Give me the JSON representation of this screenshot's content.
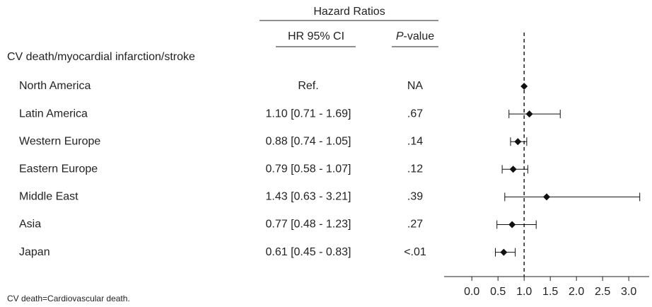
{
  "chart_data": {
    "type": "forest",
    "header": "Hazard Ratios",
    "ci_header": "HR 95% CI",
    "p_header_italic": "P",
    "p_header_rest": "-value",
    "section_label": "CV death/myocardial infarction/stroke",
    "categories": [
      "North America",
      "Latin America",
      "Western Europe",
      "Eastern Europe",
      "Middle East",
      "Asia",
      "Japan"
    ],
    "values": [
      1,
      1.1,
      0.88,
      0.79,
      1.43,
      0.77,
      0.61
    ],
    "lower": [
      null,
      0.71,
      0.74,
      0.58,
      0.63,
      0.48,
      0.45
    ],
    "upper": [
      null,
      1.69,
      1.05,
      1.07,
      3.21,
      1.23,
      0.83
    ],
    "ci_labels": [
      "Ref.",
      "1.10 [0.71 - 1.69]",
      "0.88 [0.74 - 1.05]",
      "0.79 [0.58 - 1.07]",
      "1.43 [0.63 - 3.21]",
      "0.77 [0.48 - 1.23]",
      "0.61 [0.45 - 0.83]"
    ],
    "p_values": [
      "NA",
      ".67",
      ".14",
      ".12",
      ".39",
      ".27",
      "<.01"
    ],
    "ref_line": 1,
    "color": "#111111",
    "xlim": [
      -0.53,
      3.39
    ],
    "xticks": [
      {
        "value": 0,
        "label": "0.0"
      },
      {
        "value": 0.5,
        "label": "0.5"
      },
      {
        "value": 1,
        "label": "1.0"
      },
      {
        "value": 1.5,
        "label": "1.5"
      },
      {
        "value": 2,
        "label": "2.0"
      },
      {
        "value": 2.5,
        "label": "2.5"
      },
      {
        "value": 3,
        "label": "3.0"
      }
    ],
    "footnote": "CV death=Cardiovascular death."
  }
}
